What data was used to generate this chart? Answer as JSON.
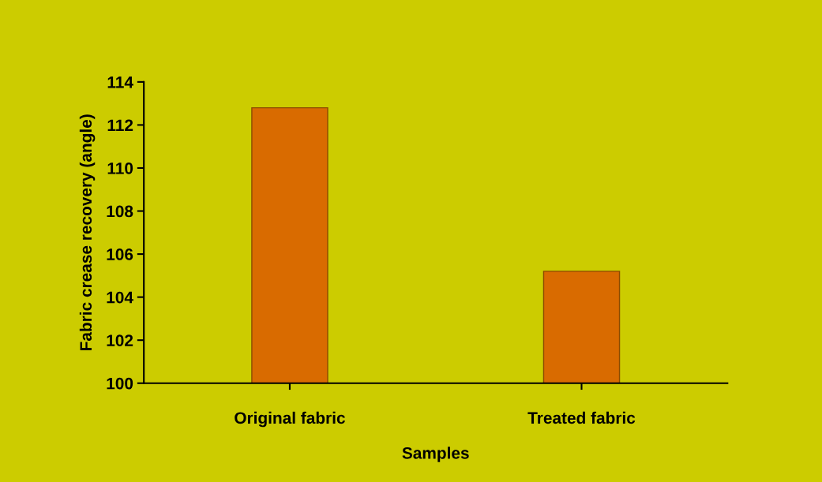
{
  "chart_data": {
    "type": "bar",
    "xlabel": "Samples",
    "ylabel": "Fabric crease recovery (angle)",
    "categories": [
      "Original fabric",
      "Treated fabric"
    ],
    "values": [
      112.8,
      105.2
    ],
    "color": "#d96b00",
    "ylim": [
      100,
      114
    ],
    "yticks": [
      100,
      102,
      104,
      106,
      108,
      110,
      112,
      114
    ],
    "grid": false,
    "legend": false
  }
}
